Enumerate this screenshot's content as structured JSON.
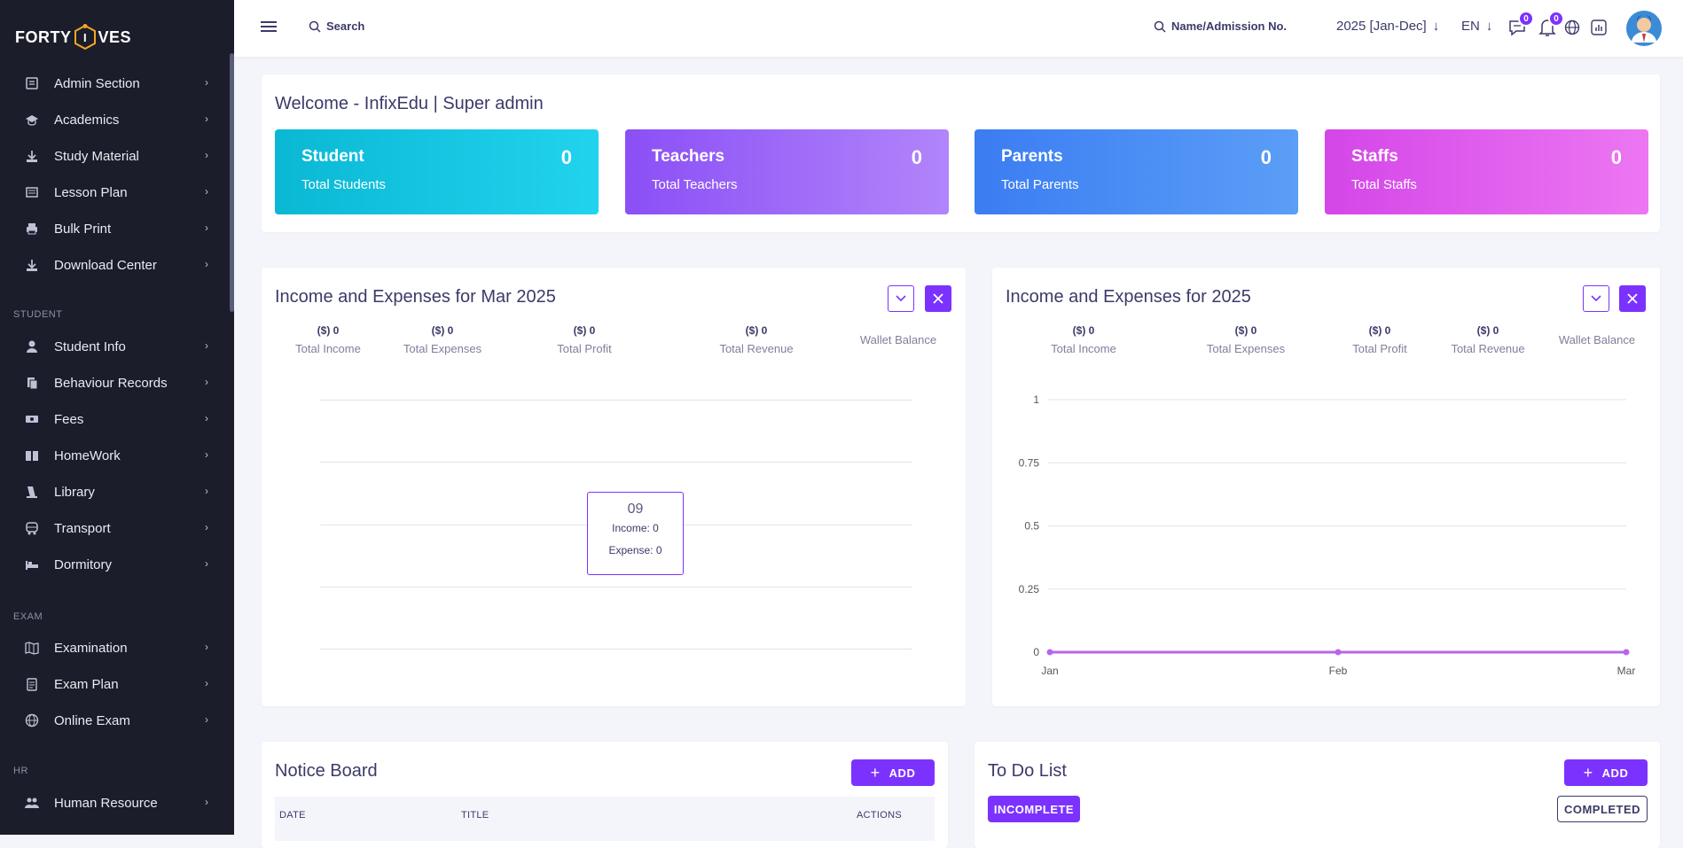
{
  "brand": {
    "name_left": "FORTY",
    "name_mid": "I",
    "name_right": "VES",
    "accent": "#f5a623"
  },
  "sidebar": {
    "groups": [
      {
        "items": [
          {
            "label": "Admin Section",
            "icon": "admin-icon"
          },
          {
            "label": "Academics",
            "icon": "graduation-cap-icon"
          },
          {
            "label": "Study Material",
            "icon": "download-icon"
          },
          {
            "label": "Lesson Plan",
            "icon": "list-icon"
          },
          {
            "label": "Bulk Print",
            "icon": "printer-icon"
          },
          {
            "label": "Download Center",
            "icon": "download-icon"
          }
        ]
      },
      {
        "section": "STUDENT",
        "items": [
          {
            "label": "Student Info",
            "icon": "user-icon"
          },
          {
            "label": "Behaviour Records",
            "icon": "records-icon"
          },
          {
            "label": "Fees",
            "icon": "money-icon"
          },
          {
            "label": "HomeWork",
            "icon": "book-icon"
          },
          {
            "label": "Library",
            "icon": "library-icon"
          },
          {
            "label": "Transport",
            "icon": "bus-icon"
          },
          {
            "label": "Dormitory",
            "icon": "bed-icon"
          }
        ]
      },
      {
        "section": "EXAM",
        "items": [
          {
            "label": "Examination",
            "icon": "map-icon"
          },
          {
            "label": "Exam Plan",
            "icon": "clipboard-icon"
          },
          {
            "label": "Online Exam",
            "icon": "globe-icon"
          }
        ]
      },
      {
        "section": "HR",
        "items": [
          {
            "label": "Human Resource",
            "icon": "users-icon"
          }
        ]
      }
    ]
  },
  "topbar": {
    "search_placeholder": "Search",
    "admission_search": "Name/Admission No.",
    "year": "2025 [Jan-Dec]",
    "language": "EN",
    "messages_count": "0",
    "notifications_count": "0"
  },
  "welcome": {
    "title": "Welcome - InfixEdu | Super admin",
    "stats": [
      {
        "title": "Student",
        "subtitle": "Total Students",
        "value": "0"
      },
      {
        "title": "Teachers",
        "subtitle": "Total Teachers",
        "value": "0"
      },
      {
        "title": "Parents",
        "subtitle": "Total Parents",
        "value": "0"
      },
      {
        "title": "Staffs",
        "subtitle": "Total Staffs",
        "value": "0"
      }
    ]
  },
  "monthly": {
    "title": "Income and Expenses for Mar 2025",
    "summary": [
      {
        "amount": "($) 0",
        "label": "Total Income"
      },
      {
        "amount": "($) 0",
        "label": "Total Expenses"
      },
      {
        "amount": "($) 0",
        "label": "Total Profit"
      },
      {
        "amount": "($) 0",
        "label": "Total Revenue"
      },
      {
        "amount": "",
        "label": "Wallet Balance"
      }
    ],
    "tooltip": {
      "day": "09",
      "income": "Income: 0",
      "expense": "Expense: 0"
    }
  },
  "yearly": {
    "title": "Income and Expenses for 2025",
    "summary": [
      {
        "amount": "($) 0",
        "label": "Total Income"
      },
      {
        "amount": "($) 0",
        "label": "Total Expenses"
      },
      {
        "amount": "($) 0",
        "label": "Total Profit"
      },
      {
        "amount": "($) 0",
        "label": "Total Revenue"
      },
      {
        "amount": "",
        "label": "Wallet Balance"
      }
    ]
  },
  "chart_data": [
    {
      "type": "line",
      "title": "Income and Expenses for Mar 2025",
      "x": [
        "09"
      ],
      "series": [
        {
          "name": "Income",
          "values": [
            0
          ]
        },
        {
          "name": "Expense",
          "values": [
            0
          ]
        }
      ],
      "grid": true
    },
    {
      "type": "line",
      "title": "Income and Expenses for 2025",
      "x": [
        "Jan",
        "Feb",
        "Mar"
      ],
      "series": [
        {
          "values": [
            0,
            0,
            0
          ]
        }
      ],
      "ylim": [
        0,
        1
      ],
      "yticks": [
        "0",
        "0.25",
        "0.5",
        "0.75",
        "1"
      ],
      "grid": true,
      "line_color": "#b865e8"
    }
  ],
  "notice_board": {
    "title": "Notice Board",
    "add_label": "ADD",
    "columns": [
      "DATE",
      "TITLE",
      "ACTIONS"
    ]
  },
  "todo": {
    "title": "To Do List",
    "add_label": "ADD",
    "incomplete_label": "INCOMPLETE",
    "completed_label": "COMPLETED"
  },
  "colors": {
    "primary": "#7c32ff",
    "sidebar_bg": "#1b1d2a",
    "student_card": [
      "#0ab8d4",
      "#22d3ee"
    ],
    "teachers_card": [
      "#8b4ff5",
      "#b185fb"
    ],
    "parents_card": [
      "#3b7df2",
      "#5b9ef7"
    ],
    "staffs_card": [
      "#d446e8",
      "#ec77f2"
    ]
  }
}
